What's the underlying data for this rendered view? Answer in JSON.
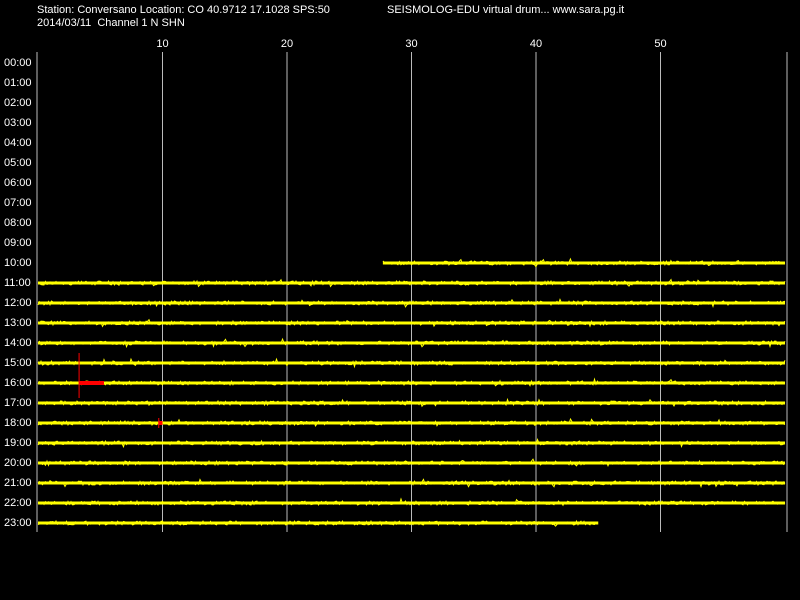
{
  "header": {
    "station": "Station: Conversano Location: CO 40.9712 17.1028 SPS:50",
    "program": "SEISMOLOG-EDU virtual drum... www.sara.pg.it",
    "date_channel": "2014/03/11  Channel 1 N SHN"
  },
  "drum": {
    "xlim": [
      0,
      60
    ],
    "xticks": [
      10,
      20,
      30,
      40,
      50
    ],
    "rows": [
      {
        "label": "00:00",
        "start": null,
        "end": null
      },
      {
        "label": "01:00",
        "start": null,
        "end": null
      },
      {
        "label": "02:00",
        "start": null,
        "end": null
      },
      {
        "label": "03:00",
        "start": null,
        "end": null
      },
      {
        "label": "04:00",
        "start": null,
        "end": null
      },
      {
        "label": "05:00",
        "start": null,
        "end": null
      },
      {
        "label": "06:00",
        "start": null,
        "end": null
      },
      {
        "label": "07:00",
        "start": null,
        "end": null
      },
      {
        "label": "08:00",
        "start": null,
        "end": null
      },
      {
        "label": "09:00",
        "start": null,
        "end": null
      },
      {
        "label": "10:00",
        "start": 27.7,
        "end": 60
      },
      {
        "label": "11:00",
        "start": 0,
        "end": 60
      },
      {
        "label": "12:00",
        "start": 0,
        "end": 60
      },
      {
        "label": "13:00",
        "start": 0,
        "end": 60
      },
      {
        "label": "14:00",
        "start": 0,
        "end": 60
      },
      {
        "label": "15:00",
        "start": 0,
        "end": 60
      },
      {
        "label": "16:00",
        "start": 0,
        "end": 60,
        "event": [
          3.3,
          5.3
        ]
      },
      {
        "label": "17:00",
        "start": 0,
        "end": 60
      },
      {
        "label": "18:00",
        "start": 0,
        "end": 60,
        "event": [
          9.7,
          10.0
        ]
      },
      {
        "label": "19:00",
        "start": 0,
        "end": 60
      },
      {
        "label": "20:00",
        "start": 0,
        "end": 60
      },
      {
        "label": "21:00",
        "start": 0,
        "end": 60
      },
      {
        "label": "22:00",
        "start": 0,
        "end": 60
      },
      {
        "label": "23:00",
        "start": 0,
        "end": 45
      }
    ]
  }
}
